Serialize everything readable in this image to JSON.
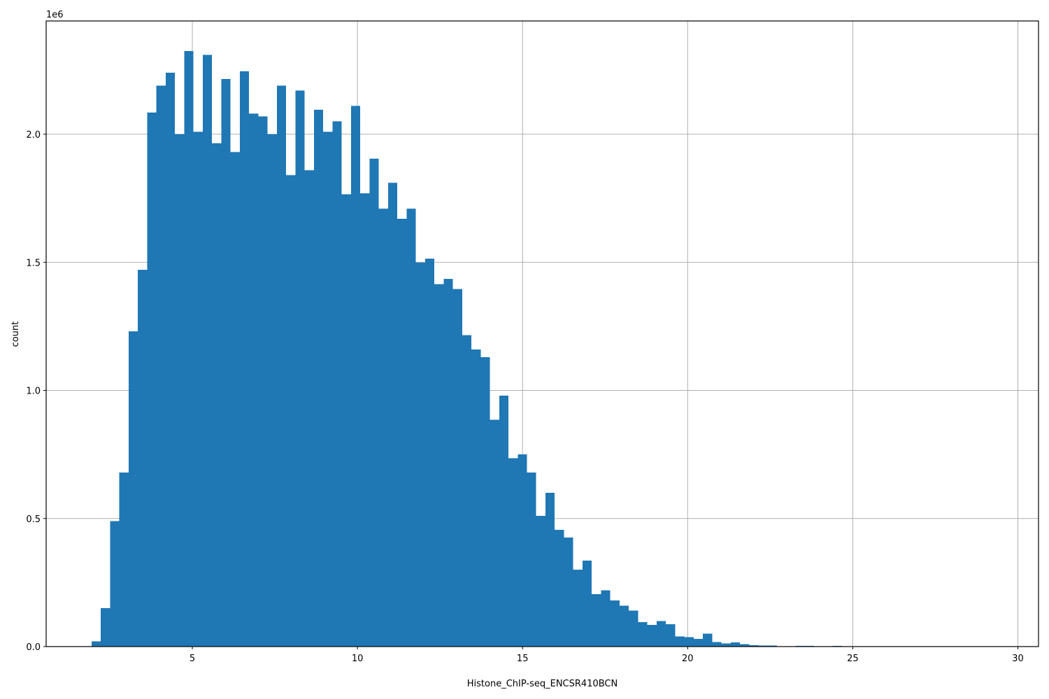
{
  "chart_data": {
    "type": "bar",
    "subtype": "histogram",
    "title": "",
    "xlabel": "Histone_ChIP-seq_ENCSR410BCN",
    "ylabel": "count",
    "y_offset_text": "1e6",
    "xlim": [
      0.6,
      30.6
    ],
    "ylim": [
      0,
      2.44
    ],
    "y_units": "millions (x1e6)",
    "grid": true,
    "legend": null,
    "bar_color": "#1f77b4",
    "x_ticks": [
      5,
      10,
      15,
      20,
      25,
      30
    ],
    "x_tick_labels": [
      "5",
      "10",
      "15",
      "20",
      "25",
      "30"
    ],
    "y_ticks": [
      0.0,
      0.5,
      1.0,
      1.5,
      2.0
    ],
    "y_tick_labels": [
      "0.0",
      "0.5",
      "1.0",
      "1.5",
      "2.0"
    ],
    "bin_start": 1.95,
    "bin_width": 0.2805,
    "values": [
      0.02,
      0.15,
      0.49,
      0.68,
      1.23,
      1.47,
      2.085,
      2.19,
      2.24,
      2.0,
      2.325,
      2.01,
      2.31,
      1.965,
      2.215,
      1.93,
      2.245,
      2.08,
      2.07,
      2.0,
      2.19,
      1.84,
      2.17,
      1.86,
      2.095,
      2.01,
      2.05,
      1.765,
      2.11,
      1.77,
      1.905,
      1.71,
      1.81,
      1.67,
      1.71,
      1.5,
      1.515,
      1.415,
      1.435,
      1.395,
      1.215,
      1.16,
      1.13,
      0.885,
      0.98,
      0.735,
      0.75,
      0.68,
      0.51,
      0.6,
      0.455,
      0.425,
      0.3,
      0.335,
      0.205,
      0.22,
      0.18,
      0.16,
      0.14,
      0.095,
      0.085,
      0.1,
      0.087,
      0.04,
      0.037,
      0.03,
      0.05,
      0.018,
      0.012,
      0.017,
      0.009,
      0.006,
      0.004,
      0.004,
      0.0,
      0.0,
      0.003,
      0.003,
      0.0,
      0.0,
      0.003,
      0.0,
      0.0,
      0.0,
      0.0,
      0.0,
      0.0,
      0.0,
      0.0,
      0.0,
      0.0,
      0.0,
      0.0,
      0.0,
      0.0,
      0.0,
      0.0,
      0.0,
      0.0,
      0.0
    ]
  }
}
